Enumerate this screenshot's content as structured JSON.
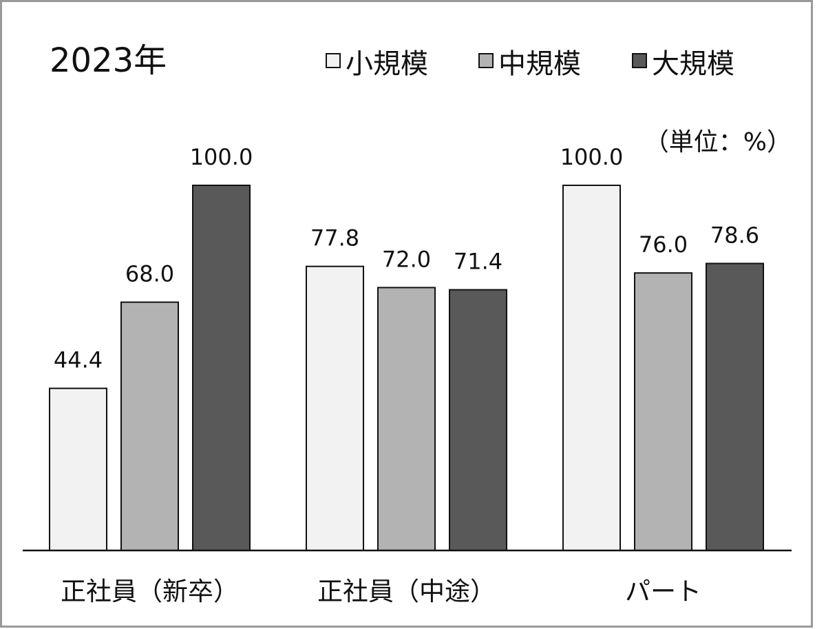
{
  "chart_data": {
    "type": "bar",
    "title": "2023年",
    "unit_label": "（単位：%）",
    "categories": [
      "正社員（新卒）",
      "正社員（中途）",
      "パート"
    ],
    "series": [
      {
        "name": "小規模",
        "color": "#f2f2f2",
        "values": [
          44.4,
          77.8,
          100.0
        ]
      },
      {
        "name": "中規模",
        "color": "#b3b3b3",
        "values": [
          68.0,
          72.0,
          76.0
        ]
      },
      {
        "name": "大規模",
        "color": "#595959",
        "values": [
          100.0,
          71.4,
          78.6
        ]
      }
    ],
    "value_labels": [
      [
        "44.4",
        "77.8",
        "100.0"
      ],
      [
        "68.0",
        "72.0",
        "76.0"
      ],
      [
        "100.0",
        "71.4",
        "78.6"
      ]
    ],
    "ylim": [
      0,
      100
    ],
    "grid": false,
    "legend_position": "top-right"
  }
}
